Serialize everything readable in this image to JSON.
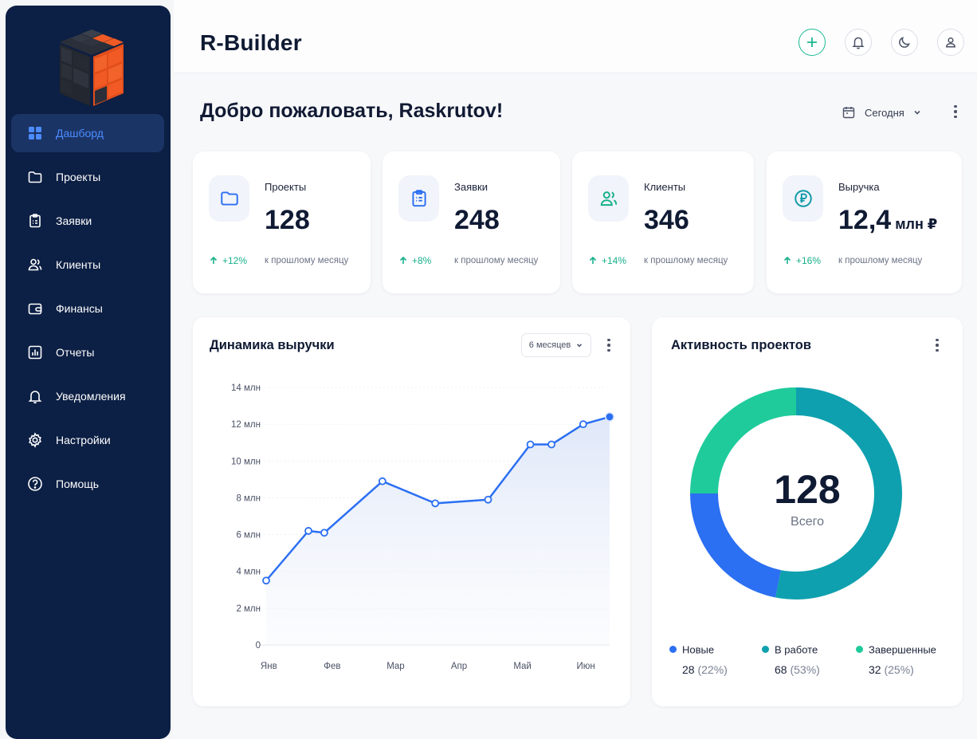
{
  "app": {
    "title": "R-Builder"
  },
  "sidebar": {
    "items": [
      {
        "label": "Дашборд",
        "icon": "grid-icon",
        "active": true
      },
      {
        "label": "Проекты",
        "icon": "folder-icon"
      },
      {
        "label": "Заявки",
        "icon": "clipboard-icon"
      },
      {
        "label": "Клиенты",
        "icon": "users-icon"
      },
      {
        "label": "Финансы",
        "icon": "wallet-icon"
      },
      {
        "label": "Отчеты",
        "icon": "bar-chart-icon"
      },
      {
        "label": "Уведомления",
        "icon": "bell-icon"
      },
      {
        "label": "Настройки",
        "icon": "gear-icon"
      },
      {
        "label": "Помощь",
        "icon": "help-icon"
      }
    ]
  },
  "header": {
    "welcome": "Добро пожаловать, Raskrutov!",
    "date_filter": "Сегодня"
  },
  "stats": [
    {
      "label": "Проекты",
      "value": "128",
      "unit": "",
      "delta": "+12%",
      "note": "к прошлому месяцу",
      "icon": "folder-icon"
    },
    {
      "label": "Заявки",
      "value": "248",
      "unit": "",
      "delta": "+8%",
      "note": "к прошлому месяцу",
      "icon": "clipboard-icon"
    },
    {
      "label": "Клиенты",
      "value": "346",
      "unit": "",
      "delta": "+14%",
      "note": "к прошлому месяцу",
      "icon": "users-icon"
    },
    {
      "label": "Выручка",
      "value": "12,4",
      "unit": " млн ₽",
      "delta": "+16%",
      "note": "к прошлому месяцу",
      "icon": "ruble-icon"
    }
  ],
  "revenue_panel": {
    "title": "Динамика выручки",
    "range": "6 месяцев"
  },
  "activity_panel": {
    "title": "Активность проектов",
    "total": "128",
    "total_label": "Всего",
    "legend": [
      {
        "name": "Новые",
        "count": "28",
        "pct": "(22%)"
      },
      {
        "name": "В работе",
        "count": "68",
        "pct": "(53%)"
      },
      {
        "name": "Завершенные",
        "count": "32",
        "pct": "(25%)"
      }
    ]
  },
  "colors": {
    "sidebar": "#0c1f44",
    "accent_blue": "#2b6ff2",
    "teal": "#0ea0ae",
    "green": "#1fcb9b",
    "positive": "#16b08a"
  },
  "chart_data": [
    {
      "type": "line",
      "title": "Динамика выручки",
      "y_ticks": [
        "0",
        "2 млн",
        "4 млн",
        "6 млн",
        "8 млн",
        "10 млн",
        "12 млн",
        "14 млн"
      ],
      "ylim": [
        0,
        14
      ],
      "x_ticks": [
        "Янв",
        "Фев",
        "Мар",
        "Апр",
        "Май",
        "Июн"
      ],
      "series": [
        {
          "x": [
            0,
            0.8,
            1.1,
            2.2,
            3.2,
            4.2,
            5.0,
            5.4,
            6.0,
            6.5
          ],
          "y": [
            3.5,
            6.2,
            6.1,
            8.9,
            7.7,
            7.9,
            10.9,
            10.9,
            12.0,
            12.4
          ]
        }
      ],
      "grid": true
    },
    {
      "type": "pie",
      "title": "Активность проектов",
      "labels": [
        "Новые",
        "В работе",
        "Завершенные"
      ],
      "values": [
        28,
        68,
        32
      ],
      "colors": [
        "#2b6ff2",
        "#0ea0ae",
        "#1fcb9b"
      ]
    }
  ]
}
